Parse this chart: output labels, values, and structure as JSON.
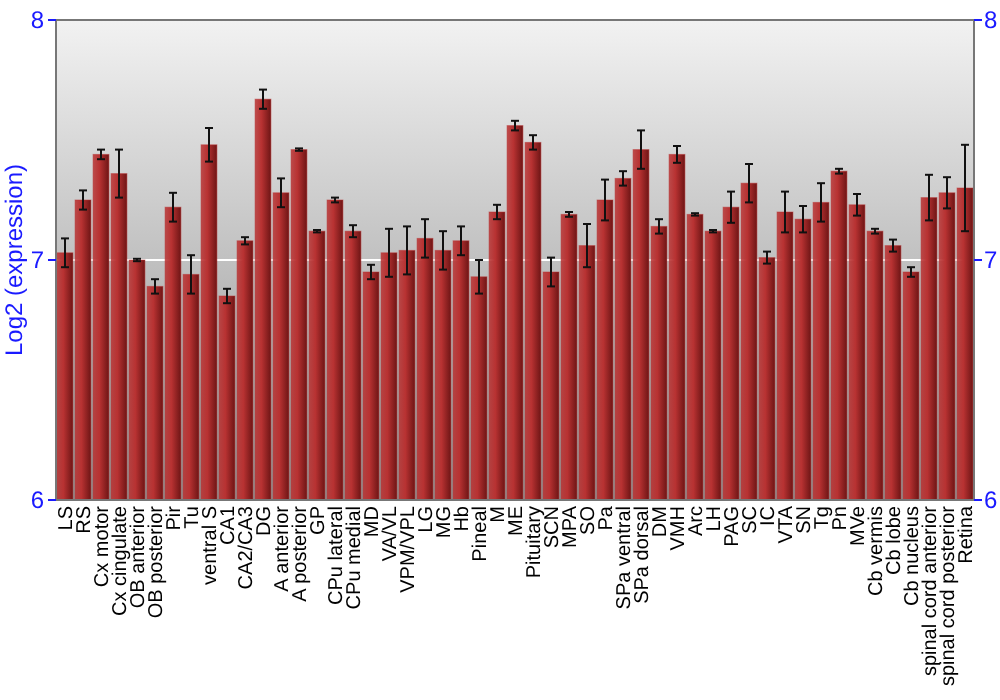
{
  "chart_data": {
    "type": "bar",
    "ylabel": "Log2 (expression)",
    "categories": [
      "LS",
      "RS",
      "Cx motor",
      "Cx cingulate",
      "OB anterior",
      "OB posterior",
      "Pir",
      "Tu",
      "ventral S",
      "CA1",
      "CA2/CA3",
      "DG",
      "A anterior",
      "A posterior",
      "GP",
      "CPu lateral",
      "CPu medial",
      "MD",
      "VA/VL",
      "VPM/VPL",
      "LG",
      "MG",
      "Hb",
      "Pineal",
      "M",
      "ME",
      "Pituitary",
      "SCN",
      "MPA",
      "SO",
      "Pa",
      "SPa ventral",
      "SPa dorsal",
      "DM",
      "VMH",
      "Arc",
      "LH",
      "PAG",
      "SC",
      "IC",
      "VTA",
      "SN",
      "Tg",
      "Pn",
      "MVe",
      "Cb vermis",
      "Cb lobe",
      "Cb nucleus",
      "spinal cord anterior",
      "spinal cord posterior",
      "Retina"
    ],
    "values": [
      7.03,
      7.25,
      7.44,
      7.36,
      7.0,
      6.89,
      7.22,
      6.94,
      7.48,
      6.85,
      7.08,
      7.67,
      7.28,
      7.46,
      7.12,
      7.25,
      7.12,
      6.95,
      7.03,
      7.04,
      7.09,
      7.04,
      7.08,
      6.93,
      7.2,
      7.56,
      7.49,
      6.95,
      7.19,
      7.06,
      7.25,
      7.34,
      7.46,
      7.14,
      7.44,
      7.19,
      7.12,
      7.22,
      7.32,
      7.01,
      7.2,
      7.17,
      7.24,
      7.37,
      7.23,
      7.12,
      7.06,
      6.95,
      7.26,
      7.28,
      7.3
    ],
    "errors": [
      0.06,
      0.04,
      0.02,
      0.1,
      0.005,
      0.03,
      0.06,
      0.08,
      0.07,
      0.03,
      0.015,
      0.04,
      0.06,
      0.005,
      0.005,
      0.01,
      0.025,
      0.03,
      0.1,
      0.1,
      0.08,
      0.08,
      0.06,
      0.07,
      0.03,
      0.02,
      0.03,
      0.06,
      0.01,
      0.09,
      0.085,
      0.03,
      0.08,
      0.03,
      0.035,
      0.005,
      0.005,
      0.065,
      0.08,
      0.025,
      0.085,
      0.055,
      0.08,
      0.01,
      0.045,
      0.01,
      0.025,
      0.02,
      0.095,
      0.065,
      0.18
    ],
    "color": "#b83232",
    "ylim": [
      6,
      8
    ],
    "yticks": [
      6,
      7,
      8
    ],
    "y2lim": [
      6,
      8
    ],
    "y2ticks": [
      6,
      7,
      8
    ],
    "grid": "y"
  }
}
